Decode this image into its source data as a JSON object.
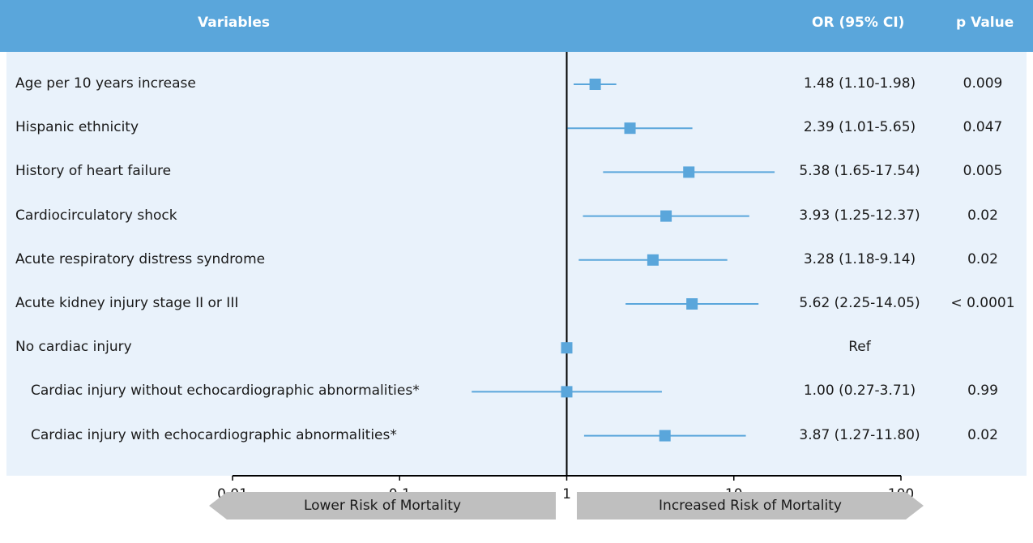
{
  "header": {
    "variables_label": "Variables",
    "or_label": "OR (95% CI)",
    "p_label": "p Value"
  },
  "chart_data": {
    "type": "forest",
    "xscale": "log",
    "xlim": [
      0.01,
      100
    ],
    "xticks": [
      0.01,
      0.1,
      1,
      10,
      100
    ],
    "xtick_labels": [
      "0.01",
      "0.1",
      "1",
      "10",
      "100"
    ],
    "reference_line": 1,
    "rows": [
      {
        "label": "Age per 10 years increase",
        "indent": false,
        "or": 1.48,
        "lo": 1.1,
        "hi": 1.98,
        "ci_text": "1.48 (1.10-1.98)",
        "p": "0.009"
      },
      {
        "label": "Hispanic ethnicity",
        "indent": false,
        "or": 2.39,
        "lo": 1.01,
        "hi": 5.65,
        "ci_text": "2.39 (1.01-5.65)",
        "p": "0.047"
      },
      {
        "label": "History of heart failure",
        "indent": false,
        "or": 5.38,
        "lo": 1.65,
        "hi": 17.54,
        "ci_text": "5.38 (1.65-17.54)",
        "p": "0.005"
      },
      {
        "label": "Cardiocirculatory shock",
        "indent": false,
        "or": 3.93,
        "lo": 1.25,
        "hi": 12.37,
        "ci_text": "3.93 (1.25-12.37)",
        "p": "0.02"
      },
      {
        "label": "Acute respiratory distress syndrome",
        "indent": false,
        "or": 3.28,
        "lo": 1.18,
        "hi": 9.14,
        "ci_text": "3.28 (1.18-9.14)",
        "p": "0.02"
      },
      {
        "label": "Acute kidney injury stage II or III",
        "indent": false,
        "or": 5.62,
        "lo": 2.25,
        "hi": 14.05,
        "ci_text": "5.62 (2.25-14.05)",
        "p": "< 0.0001"
      },
      {
        "label": "No cardiac injury",
        "indent": false,
        "or": 1.0,
        "lo": null,
        "hi": null,
        "ci_text": "Ref",
        "p": ""
      },
      {
        "label": "Cardiac injury without echocardiographic abnormalities*",
        "indent": true,
        "or": 1.0,
        "lo": 0.27,
        "hi": 3.71,
        "ci_text": "1.00 (0.27-3.71)",
        "p": "0.99"
      },
      {
        "label": "Cardiac injury with echocardiographic abnormalities*",
        "indent": true,
        "or": 3.87,
        "lo": 1.27,
        "hi": 11.8,
        "ci_text": "3.87 (1.27-11.80)",
        "p": "0.02"
      }
    ],
    "marker_color": "#5aa6db",
    "line_color": "#5aa6db"
  },
  "footer": {
    "lower_label": "Lower Risk of Mortality",
    "higher_label": "Increased Risk of Mortality",
    "arrow_color": "#bfbfbf"
  }
}
